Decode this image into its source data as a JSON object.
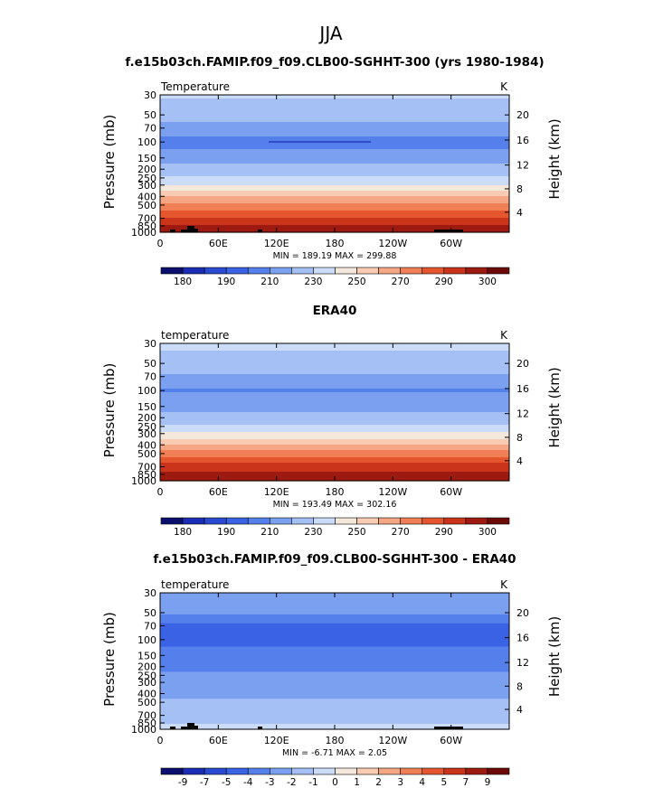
{
  "figure_title": "JJA",
  "chart_data": [
    {
      "type": "heatmap",
      "title": "f.e15b03ch.FAMIP.f09_f09.CLB00-SGHHT-300 (yrs 1980-1984)",
      "variable_label": "Temperature",
      "units": "K",
      "ylabel": "Pressure  (mb)",
      "ylabel_right": "Height  (km)",
      "x_ticks": [
        "0",
        "60E",
        "120E",
        "180",
        "120W",
        "60W"
      ],
      "y_ticks": [
        "30",
        "50",
        "70",
        "100",
        "150",
        "200",
        "250",
        "300",
        "400",
        "500",
        "700",
        "850",
        "1000"
      ],
      "y_ticks_right": [
        "20",
        "16",
        "12",
        "8",
        "4"
      ],
      "min_max_label": "MIN = 189.19   MAX = 299.88",
      "min": 189.19,
      "max": 299.88,
      "profile": {
        "p": [
          30,
          50,
          70,
          100,
          150,
          200,
          250,
          300,
          400,
          500,
          700,
          850,
          1000
        ],
        "v": [
          222,
          213,
          207,
          196,
          206,
          213,
          221,
          230,
          249,
          263,
          282,
          290,
          296
        ]
      },
      "colorbar_labels": [
        "180",
        "190",
        "210",
        "230",
        "250",
        "270",
        "290",
        "300"
      ]
    },
    {
      "type": "heatmap",
      "title": "ERA40",
      "variable_label": "temperature",
      "units": "K",
      "ylabel": "Pressure  (mb)",
      "ylabel_right": "Height  (km)",
      "x_ticks": [
        "0",
        "60E",
        "120E",
        "180",
        "120W",
        "60W"
      ],
      "y_ticks": [
        "30",
        "50",
        "70",
        "100",
        "150",
        "200",
        "250",
        "300",
        "400",
        "500",
        "700",
        "850",
        "1000"
      ],
      "y_ticks_right": [
        "20",
        "16",
        "12",
        "8",
        "4"
      ],
      "min_max_label": "MIN = 193.49   MAX = 302.16",
      "min": 193.49,
      "max": 302.16,
      "profile": {
        "p": [
          30,
          50,
          70,
          100,
          150,
          200,
          250,
          300,
          400,
          500,
          700,
          850,
          1000
        ],
        "v": [
          223,
          215,
          209,
          199,
          207,
          214,
          222,
          232,
          251,
          266,
          285,
          292,
          298
        ]
      },
      "colorbar_labels": [
        "180",
        "190",
        "210",
        "230",
        "250",
        "270",
        "290",
        "300"
      ]
    },
    {
      "type": "heatmap",
      "title": "f.e15b03ch.FAMIP.f09_f09.CLB00-SGHHT-300 - ERA40",
      "variable_label": "temperature",
      "units": "K",
      "ylabel": "Pressure  (mb)",
      "ylabel_right": "Height  (km)",
      "x_ticks": [
        "0",
        "60E",
        "120E",
        "180",
        "120W",
        "60W"
      ],
      "y_ticks": [
        "30",
        "50",
        "70",
        "100",
        "150",
        "200",
        "250",
        "300",
        "400",
        "500",
        "700",
        "850",
        "1000"
      ],
      "y_ticks_right": [
        "20",
        "16",
        "12",
        "8",
        "4"
      ],
      "min_max_label": "MIN =   -6.71   MAX =    2.05",
      "min": -6.71,
      "max": 2.05,
      "profile": {
        "p": [
          30,
          50,
          70,
          100,
          150,
          200,
          250,
          300,
          400,
          500,
          700,
          850,
          1000
        ],
        "v": [
          -2.5,
          -2.8,
          -4.2,
          -4.4,
          -3.6,
          -3.1,
          -2.9,
          -2.7,
          -2.2,
          -1.8,
          -1.6,
          -1.2,
          -0.5
        ]
      },
      "colorbar_labels": [
        "-9",
        "-7",
        "-5",
        "-4",
        "-3",
        "-2",
        "-1",
        "0",
        "1",
        "2",
        "3",
        "4",
        "5",
        "7",
        "9"
      ]
    }
  ],
  "colorbar_colors": [
    "#0a0f6e",
    "#1a2db4",
    "#2b4ad2",
    "#3a62e4",
    "#5580ec",
    "#7ba0f0",
    "#a4c0f4",
    "#cbdcf8",
    "#f4e8dc",
    "#f8cbb2",
    "#f5a683",
    "#f07f55",
    "#e5552e",
    "#c9341a",
    "#9c1a10",
    "#6c0a08"
  ],
  "colorbar_thresholds_abs": [
    175,
    180,
    185,
    190,
    200,
    210,
    220,
    230,
    240,
    250,
    260,
    270,
    280,
    290,
    300
  ],
  "colorbar_thresholds_diff": [
    -9,
    -7,
    -5,
    -4,
    -3,
    -2,
    -1,
    0,
    1,
    2,
    3,
    4,
    5,
    7,
    9
  ]
}
